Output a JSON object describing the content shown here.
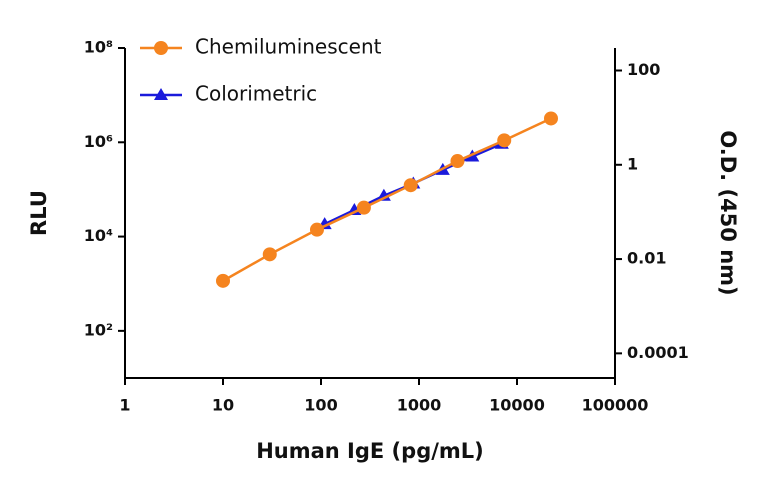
{
  "chart_data": {
    "type": "line",
    "x_label": "Human IgE (pg/mL)",
    "y_label": "RLU",
    "y2_label": "O.D. (450 nm)",
    "xscale": "log",
    "yscale": "log",
    "y2scale": "log",
    "xlim": [
      1,
      100000
    ],
    "xticks": [
      1,
      10,
      100,
      1000,
      10000,
      100000
    ],
    "ylim": [
      10,
      100000000
    ],
    "yticks": [
      {
        "value": 100,
        "label": "10²"
      },
      {
        "value": 10000,
        "label": "10⁴"
      },
      {
        "value": 1000000,
        "label": "10⁶"
      },
      {
        "value": 100000000,
        "label": "10⁸"
      }
    ],
    "y2lim": [
      3e-05,
      300
    ],
    "y2ticks": [
      0.0001,
      0.01,
      1,
      100
    ],
    "legend": "top-left",
    "series": [
      {
        "name": "Chemiluminescent",
        "color": "#f5841f",
        "marker": "circle",
        "x": [
          10,
          30,
          91,
          274,
          823,
          2469,
          7407,
          22222
        ],
        "values": [
          1150,
          4200,
          14000,
          41000,
          123000,
          400000,
          1100000,
          3200000
        ]
      },
      {
        "name": "Colorimetric",
        "color": "#1a1adb",
        "marker": "triangle",
        "axis": "y2",
        "x": [
          109,
          219,
          438,
          875,
          1750,
          3500,
          7000
        ],
        "values": [
          0.055,
          0.11,
          0.22,
          0.4,
          0.78,
          1.5,
          2.8
        ]
      }
    ]
  }
}
